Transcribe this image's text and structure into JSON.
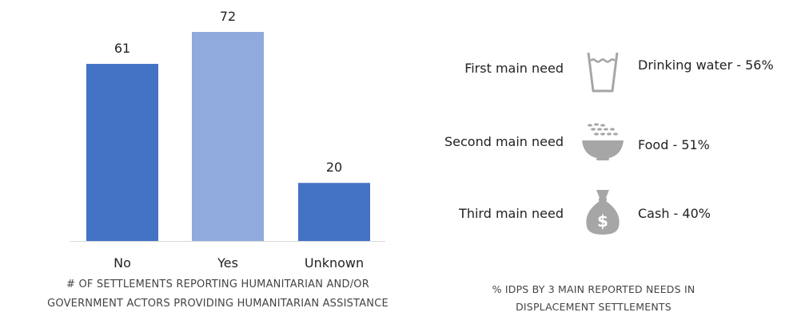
{
  "chart_data": {
    "type": "bar",
    "categories": [
      "No",
      "Yes",
      "Unknown"
    ],
    "values": [
      61,
      72,
      20
    ],
    "ylim": [
      0,
      72
    ],
    "colors": [
      "#4472c4",
      "#8faadc",
      "#4472c4"
    ],
    "caption": [
      "# OF SETTLEMENTS REPORTING HUMANITARIAN AND/OR",
      "GOVERNMENT ACTORS PROVIDING HUMANITARIAN ASSISTANCE"
    ]
  },
  "needs": {
    "items": [
      {
        "label": "First main need",
        "icon": "drinking-water-icon",
        "value": "Drinking water - 56%"
      },
      {
        "label": "Second main need",
        "icon": "food-bowl-icon",
        "value": "Food - 51%"
      },
      {
        "label": "Third main need",
        "icon": "money-bag-icon",
        "value": "Cash - 40%"
      }
    ],
    "icon_color": "#a6a6a6",
    "caption": [
      "% IDPS BY 3 MAIN REPORTED NEEDS IN",
      "DISPLACEMENT SETTLEMENTS"
    ]
  }
}
